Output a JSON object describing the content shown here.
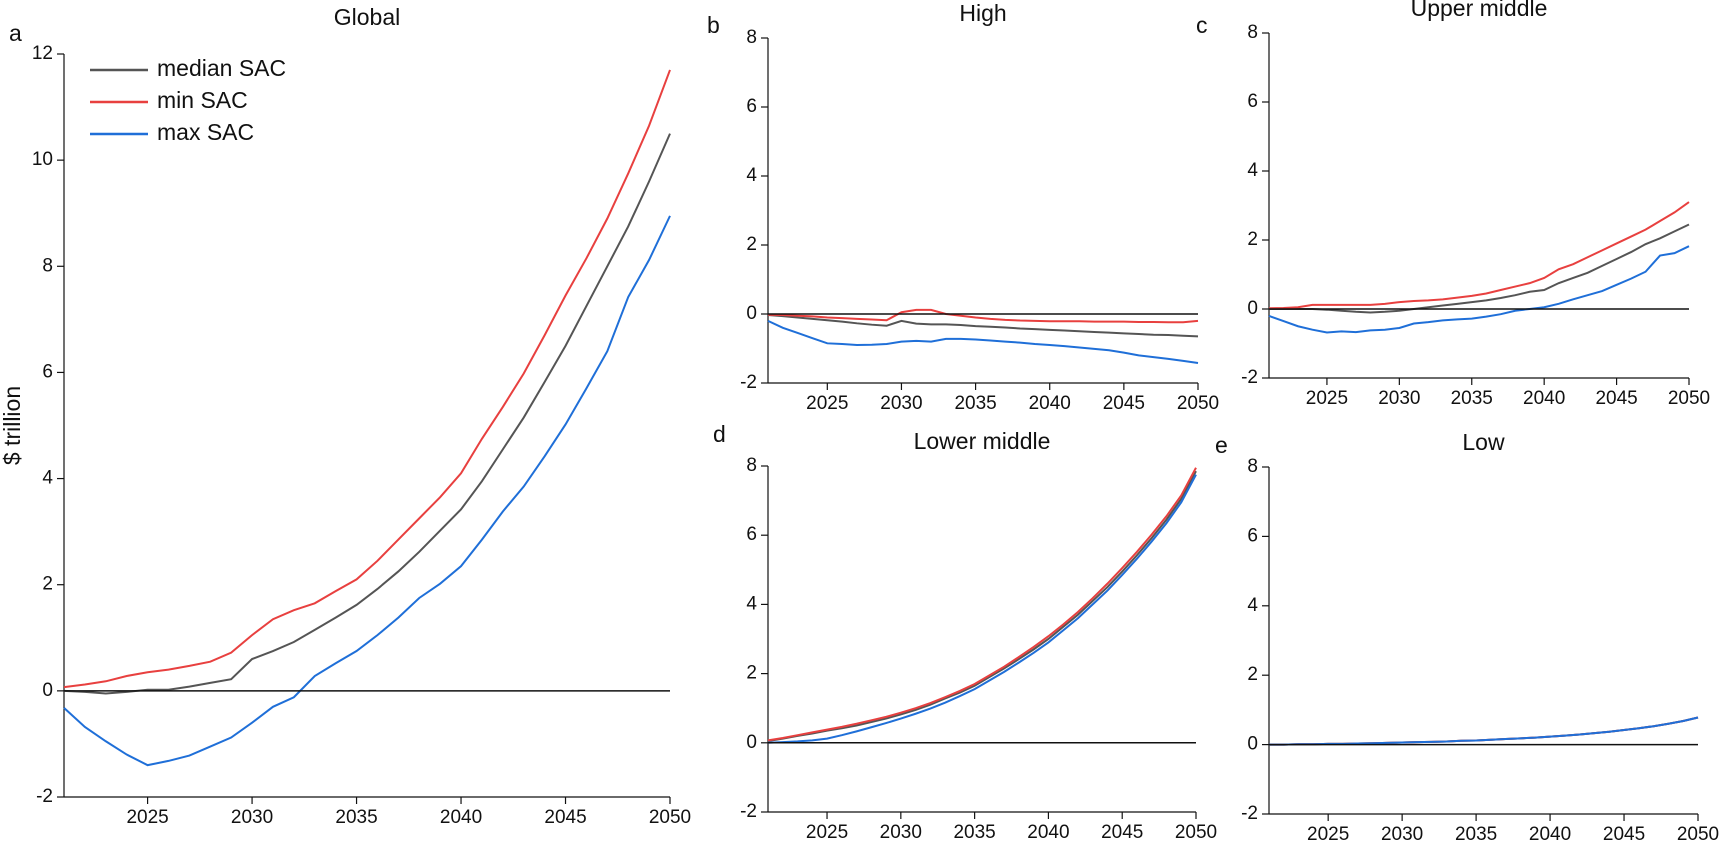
{
  "chart_data": [
    {
      "type": "line",
      "panel_label": "a",
      "title": "Global",
      "ylabel": "$ trillion",
      "legend": "upper left",
      "zero_line": true,
      "x": [
        2021,
        2022,
        2023,
        2024,
        2025,
        2026,
        2027,
        2028,
        2029,
        2030,
        2031,
        2032,
        2033,
        2034,
        2035,
        2036,
        2037,
        2038,
        2039,
        2040,
        2041,
        2042,
        2043,
        2044,
        2045,
        2046,
        2047,
        2048,
        2049,
        2050
      ],
      "xlim": [
        2021,
        2050
      ],
      "xticks": [
        2025,
        2030,
        2035,
        2040,
        2045,
        2050
      ],
      "ylim": [
        -2,
        12
      ],
      "yticks": [
        -2,
        0,
        2,
        4,
        6,
        8,
        10,
        12
      ],
      "series": [
        {
          "name": "median SAC",
          "color": "#555555",
          "values": [
            0,
            -0.02,
            -0.05,
            -0.02,
            0.02,
            0.02,
            0.08,
            0.15,
            0.22,
            0.6,
            0.75,
            0.92,
            1.15,
            1.38,
            1.62,
            1.92,
            2.25,
            2.62,
            3.02,
            3.42,
            3.95,
            4.55,
            5.15,
            5.82,
            6.5,
            7.25,
            8.0,
            8.75,
            9.6,
            10.5
          ]
        },
        {
          "name": "min SAC",
          "color": "#e8403f",
          "values": [
            0.07,
            0.12,
            0.18,
            0.28,
            0.35,
            0.4,
            0.47,
            0.55,
            0.72,
            1.05,
            1.35,
            1.52,
            1.65,
            1.88,
            2.1,
            2.45,
            2.85,
            3.25,
            3.65,
            4.1,
            4.75,
            5.35,
            5.98,
            6.7,
            7.45,
            8.15,
            8.9,
            9.75,
            10.65,
            11.7
          ]
        },
        {
          "name": "max SAC",
          "color": "#1f6fd8",
          "values": [
            -0.32,
            -0.68,
            -0.95,
            -1.2,
            -1.4,
            -1.32,
            -1.22,
            -1.05,
            -0.88,
            -0.6,
            -0.3,
            -0.12,
            0.28,
            0.52,
            0.75,
            1.05,
            1.38,
            1.75,
            2.02,
            2.35,
            2.85,
            3.38,
            3.85,
            4.42,
            5.02,
            5.7,
            6.4,
            7.42,
            8.12,
            8.95
          ]
        }
      ]
    },
    {
      "type": "line",
      "panel_label": "b",
      "title": "High",
      "zero_line": true,
      "x": [
        2021,
        2022,
        2023,
        2024,
        2025,
        2026,
        2027,
        2028,
        2029,
        2030,
        2031,
        2032,
        2033,
        2034,
        2035,
        2036,
        2037,
        2038,
        2039,
        2040,
        2041,
        2042,
        2043,
        2044,
        2045,
        2046,
        2047,
        2048,
        2049,
        2050
      ],
      "xlim": [
        2021,
        2050
      ],
      "xticks": [
        2025,
        2030,
        2035,
        2040,
        2045,
        2050
      ],
      "ylim": [
        -2,
        8
      ],
      "yticks": [
        -2,
        0,
        2,
        4,
        6,
        8
      ],
      "series": [
        {
          "color": "#555555",
          "values": [
            -0.03,
            -0.06,
            -0.1,
            -0.14,
            -0.18,
            -0.22,
            -0.27,
            -0.31,
            -0.34,
            -0.2,
            -0.28,
            -0.3,
            -0.3,
            -0.32,
            -0.35,
            -0.37,
            -0.39,
            -0.42,
            -0.44,
            -0.46,
            -0.48,
            -0.5,
            -0.52,
            -0.54,
            -0.56,
            -0.58,
            -0.6,
            -0.61,
            -0.63,
            -0.65
          ]
        },
        {
          "color": "#e8403f",
          "values": [
            -0.02,
            -0.03,
            -0.05,
            -0.07,
            -0.1,
            -0.12,
            -0.14,
            -0.16,
            -0.18,
            0.05,
            0.12,
            0.12,
            0.0,
            -0.05,
            -0.1,
            -0.14,
            -0.17,
            -0.19,
            -0.2,
            -0.21,
            -0.21,
            -0.21,
            -0.22,
            -0.22,
            -0.22,
            -0.23,
            -0.23,
            -0.24,
            -0.24,
            -0.2
          ]
        },
        {
          "color": "#1f6fd8",
          "values": [
            -0.2,
            -0.4,
            -0.55,
            -0.7,
            -0.85,
            -0.87,
            -0.9,
            -0.89,
            -0.87,
            -0.8,
            -0.78,
            -0.8,
            -0.72,
            -0.72,
            -0.74,
            -0.77,
            -0.8,
            -0.83,
            -0.87,
            -0.9,
            -0.93,
            -0.97,
            -1.01,
            -1.05,
            -1.12,
            -1.2,
            -1.25,
            -1.3,
            -1.36,
            -1.42
          ]
        }
      ]
    },
    {
      "type": "line",
      "panel_label": "c",
      "title": "Upper middle",
      "zero_line": true,
      "x": [
        2021,
        2022,
        2023,
        2024,
        2025,
        2026,
        2027,
        2028,
        2029,
        2030,
        2031,
        2032,
        2033,
        2034,
        2035,
        2036,
        2037,
        2038,
        2039,
        2040,
        2041,
        2042,
        2043,
        2044,
        2045,
        2046,
        2047,
        2048,
        2049,
        2050
      ],
      "xlim": [
        2021,
        2050
      ],
      "xticks": [
        2025,
        2030,
        2035,
        2040,
        2045,
        2050
      ],
      "ylim": [
        -2,
        8
      ],
      "yticks": [
        -2,
        0,
        2,
        4,
        6,
        8
      ],
      "series": [
        {
          "color": "#555555",
          "values": [
            0,
            0,
            0,
            0,
            -0.02,
            -0.05,
            -0.08,
            -0.1,
            -0.08,
            -0.05,
            0,
            0.05,
            0.1,
            0.15,
            0.2,
            0.25,
            0.32,
            0.4,
            0.5,
            0.55,
            0.75,
            0.9,
            1.05,
            1.25,
            1.45,
            1.65,
            1.88,
            2.05,
            2.25,
            2.45
          ]
        },
        {
          "color": "#e8403f",
          "values": [
            0.02,
            0.03,
            0.05,
            0.12,
            0.12,
            0.12,
            0.12,
            0.12,
            0.15,
            0.2,
            0.23,
            0.25,
            0.28,
            0.33,
            0.38,
            0.45,
            0.55,
            0.65,
            0.75,
            0.9,
            1.15,
            1.3,
            1.5,
            1.7,
            1.9,
            2.1,
            2.3,
            2.55,
            2.8,
            3.1
          ]
        },
        {
          "color": "#1f6fd8",
          "values": [
            -0.2,
            -0.35,
            -0.5,
            -0.6,
            -0.68,
            -0.65,
            -0.67,
            -0.62,
            -0.6,
            -0.55,
            -0.42,
            -0.38,
            -0.33,
            -0.3,
            -0.28,
            -0.22,
            -0.15,
            -0.05,
            0,
            0.05,
            0.15,
            0.28,
            0.4,
            0.52,
            0.7,
            0.88,
            1.08,
            1.55,
            1.62,
            1.82
          ]
        }
      ]
    },
    {
      "type": "line",
      "panel_label": "d",
      "title": "Lower middle",
      "zero_line": true,
      "x": [
        2021,
        2022,
        2023,
        2024,
        2025,
        2026,
        2027,
        2028,
        2029,
        2030,
        2031,
        2032,
        2033,
        2034,
        2035,
        2036,
        2037,
        2038,
        2039,
        2040,
        2041,
        2042,
        2043,
        2044,
        2045,
        2046,
        2047,
        2048,
        2049,
        2050
      ],
      "xlim": [
        2021,
        2050
      ],
      "xticks": [
        2025,
        2030,
        2035,
        2040,
        2045,
        2050
      ],
      "ylim": [
        -2,
        8
      ],
      "yticks": [
        -2,
        0,
        2,
        4,
        6,
        8
      ],
      "series": [
        {
          "color": "#555555",
          "values": [
            0.05,
            0.12,
            0.2,
            0.27,
            0.35,
            0.42,
            0.5,
            0.6,
            0.7,
            0.82,
            0.95,
            1.1,
            1.28,
            1.45,
            1.65,
            1.9,
            2.15,
            2.42,
            2.7,
            3.0,
            3.35,
            3.7,
            4.1,
            4.5,
            4.95,
            5.42,
            5.92,
            6.45,
            7.05,
            7.85
          ]
        },
        {
          "color": "#e8403f",
          "values": [
            0.07,
            0.14,
            0.22,
            0.3,
            0.38,
            0.46,
            0.55,
            0.65,
            0.75,
            0.87,
            1.0,
            1.15,
            1.32,
            1.5,
            1.7,
            1.95,
            2.2,
            2.48,
            2.77,
            3.08,
            3.42,
            3.78,
            4.18,
            4.6,
            5.05,
            5.52,
            6.02,
            6.55,
            7.15,
            7.95
          ]
        },
        {
          "color": "#1f6fd8",
          "values": [
            0.0,
            0.02,
            0.04,
            0.07,
            0.12,
            0.22,
            0.33,
            0.45,
            0.57,
            0.7,
            0.84,
            0.99,
            1.16,
            1.35,
            1.55,
            1.8,
            2.05,
            2.32,
            2.6,
            2.9,
            3.25,
            3.6,
            4.0,
            4.4,
            4.85,
            5.32,
            5.82,
            6.35,
            6.95,
            7.75
          ]
        }
      ]
    },
    {
      "type": "line",
      "panel_label": "e",
      "title": "Low",
      "zero_line": true,
      "x": [
        2021,
        2022,
        2023,
        2024,
        2025,
        2026,
        2027,
        2028,
        2029,
        2030,
        2031,
        2032,
        2033,
        2034,
        2035,
        2036,
        2037,
        2038,
        2039,
        2040,
        2041,
        2042,
        2043,
        2044,
        2045,
        2046,
        2047,
        2048,
        2049,
        2050
      ],
      "xlim": [
        2021,
        2050
      ],
      "xticks": [
        2025,
        2030,
        2035,
        2040,
        2045,
        2050
      ],
      "ylim": [
        -2,
        8
      ],
      "yticks": [
        -2,
        0,
        2,
        4,
        6,
        8
      ],
      "series": [
        {
          "color": "#555555",
          "values": [
            0,
            0,
            0.01,
            0.01,
            0.02,
            0.02,
            0.03,
            0.04,
            0.05,
            0.06,
            0.07,
            0.08,
            0.09,
            0.11,
            0.12,
            0.14,
            0.16,
            0.18,
            0.2,
            0.23,
            0.26,
            0.29,
            0.33,
            0.37,
            0.42,
            0.47,
            0.53,
            0.6,
            0.68,
            0.78
          ]
        },
        {
          "color": "#e8403f",
          "values": [
            0,
            0,
            0.01,
            0.01,
            0.02,
            0.02,
            0.03,
            0.04,
            0.05,
            0.06,
            0.07,
            0.08,
            0.09,
            0.11,
            0.12,
            0.14,
            0.16,
            0.18,
            0.2,
            0.23,
            0.26,
            0.29,
            0.33,
            0.37,
            0.42,
            0.47,
            0.53,
            0.6,
            0.68,
            0.78
          ]
        },
        {
          "color": "#1f6fd8",
          "values": [
            0,
            0,
            0.01,
            0.01,
            0.02,
            0.02,
            0.03,
            0.04,
            0.05,
            0.06,
            0.07,
            0.08,
            0.09,
            0.11,
            0.12,
            0.14,
            0.16,
            0.18,
            0.2,
            0.23,
            0.26,
            0.29,
            0.33,
            0.37,
            0.42,
            0.47,
            0.53,
            0.6,
            0.68,
            0.78
          ]
        }
      ]
    }
  ]
}
